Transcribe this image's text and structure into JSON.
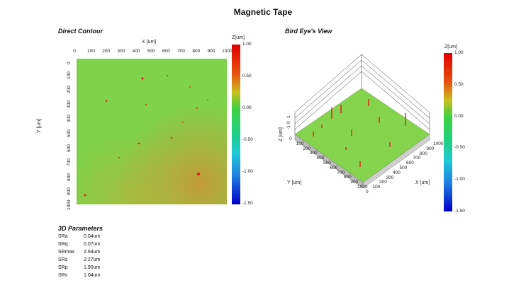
{
  "title": "Magnetic Tape",
  "contour": {
    "section_title": "Direct Contour",
    "x_axis_label": "X [um]",
    "y_axis_label": "Y [um]",
    "x_ticks": [
      "0",
      "100",
      "200",
      "300",
      "400",
      "500",
      "600",
      "700",
      "800",
      "900",
      "1000"
    ],
    "y_ticks": [
      "0",
      "100",
      "200",
      "300",
      "400",
      "500",
      "600",
      "700",
      "800",
      "900",
      "1000"
    ],
    "colorbar_title": "Z[um]",
    "colorbar_ticks": [
      "1.00",
      "0.50",
      "0.00",
      "-0.50",
      "-1.00",
      "-1.50"
    ]
  },
  "birdseye": {
    "section_title": "Bird Eye's View",
    "x_axis_label": "X [um]",
    "y_axis_label": "Y [um]",
    "z_axis_label": "Z [um]",
    "x_ticks": [
      "0",
      "100",
      "200",
      "300",
      "400",
      "500",
      "600",
      "700",
      "800",
      "900",
      "1000"
    ],
    "y_ticks": [
      "0",
      "100",
      "200",
      "300",
      "400",
      "500",
      "600",
      "700",
      "800",
      "900",
      "1000"
    ],
    "z_ticks": [
      "1",
      "0",
      "-1"
    ],
    "colorbar_title": "Z[um]",
    "colorbar_ticks": [
      "1.00",
      "0.50",
      "0.00",
      "-0.50",
      "-1.00",
      "-1.50"
    ]
  },
  "parameters": {
    "title": "3D Parameters",
    "rows": [
      {
        "name": "SRa",
        "value": "0.04um"
      },
      {
        "name": "SRq",
        "value": "0.07um"
      },
      {
        "name": "SRmax",
        "value": "2.94um"
      },
      {
        "name": "SRz",
        "value": "2.27um"
      },
      {
        "name": "SRp",
        "value": "1.90um"
      },
      {
        "name": "SRv",
        "value": "1.04um"
      }
    ]
  },
  "colors": {
    "surface_green": "#7ed84a",
    "surface_red_tint": "#d4772e",
    "peak_red": "#e0201a"
  }
}
